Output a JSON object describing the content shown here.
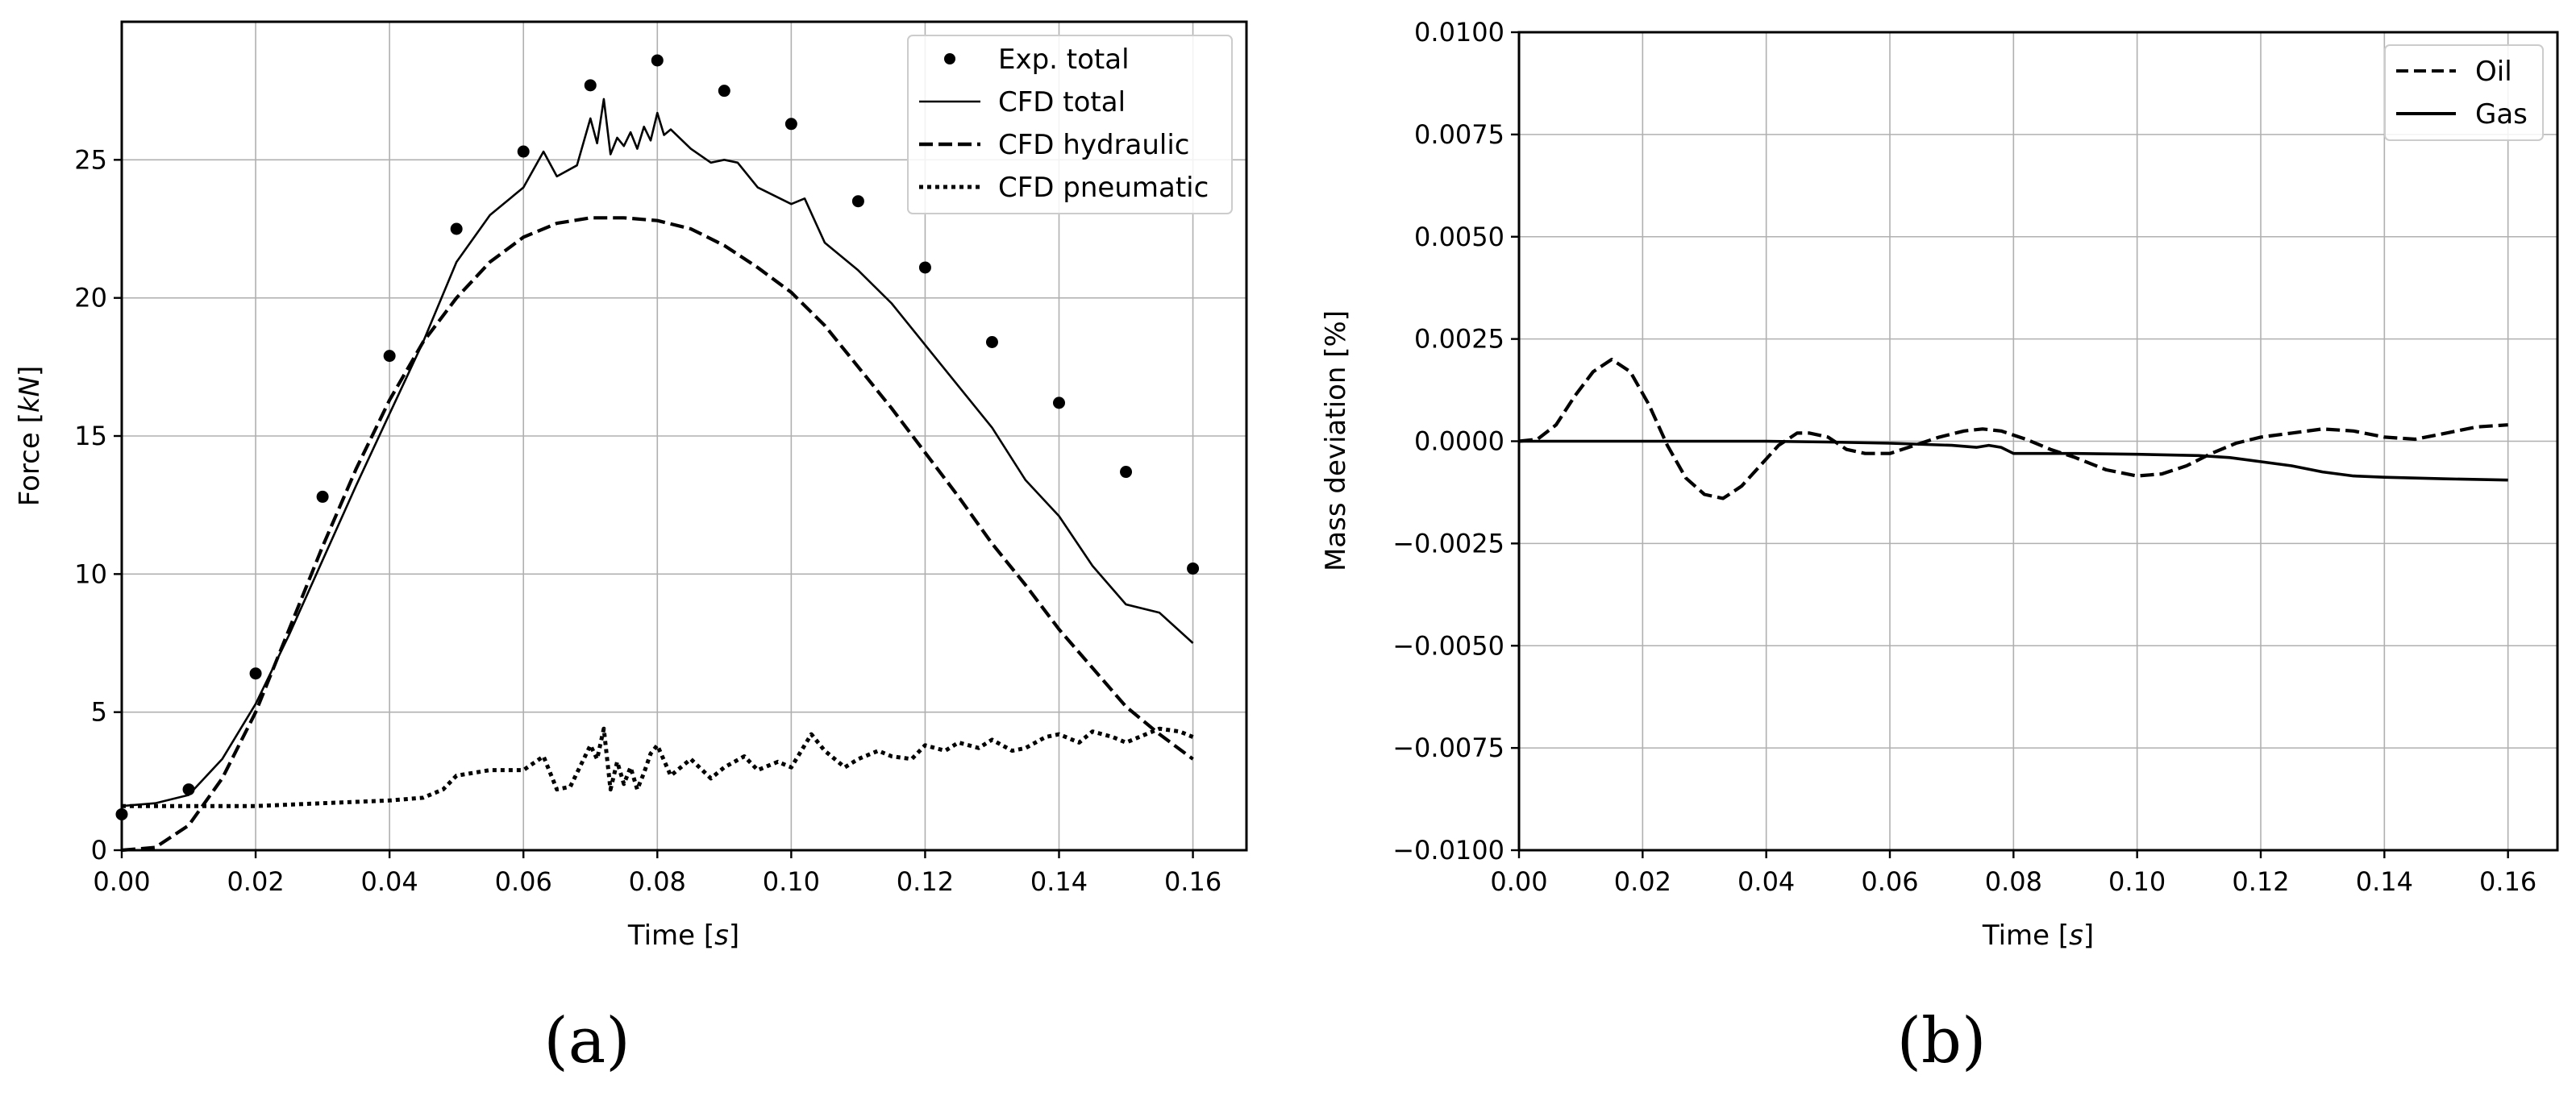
{
  "chart_data": [
    {
      "id": "a",
      "type": "line",
      "panel_label": "(a)",
      "xlabel": "Time [s]",
      "xlabel_parts": [
        "Time [",
        "s",
        "]"
      ],
      "ylabel": "Force [kN]",
      "ylabel_parts": [
        "Force [",
        "kN",
        "]"
      ],
      "xlim": [
        0,
        0.168
      ],
      "ylim": [
        0,
        30
      ],
      "grid": true,
      "legend_placement": "top-right",
      "x_ticks": [
        0,
        0.02,
        0.04,
        0.06,
        0.08,
        0.1,
        0.12,
        0.14,
        0.16
      ],
      "x_tick_labels": [
        "0.00",
        "0.02",
        "0.04",
        "0.06",
        "0.08",
        "0.10",
        "0.12",
        "0.14",
        "0.16"
      ],
      "y_ticks": [
        0,
        5,
        10,
        15,
        20,
        25
      ],
      "y_tick_labels": [
        "0",
        "5",
        "10",
        "15",
        "20",
        "25"
      ],
      "series": [
        {
          "name": "Exp. total",
          "style": "markers",
          "x": [
            0,
            0.01,
            0.02,
            0.03,
            0.04,
            0.05,
            0.06,
            0.07,
            0.08,
            0.09,
            0.1,
            0.11,
            0.12,
            0.13,
            0.14,
            0.15,
            0.16
          ],
          "y": [
            1.3,
            2.2,
            6.4,
            12.8,
            17.9,
            22.5,
            25.3,
            27.7,
            28.6,
            27.5,
            26.3,
            23.5,
            21.1,
            18.4,
            16.2,
            13.7,
            10.2
          ]
        },
        {
          "name": "CFD total",
          "style": "solid-thin",
          "x": [
            0,
            0.005,
            0.01,
            0.015,
            0.02,
            0.025,
            0.03,
            0.035,
            0.04,
            0.045,
            0.05,
            0.055,
            0.06,
            0.063,
            0.065,
            0.068,
            0.07,
            0.071,
            0.072,
            0.073,
            0.074,
            0.075,
            0.076,
            0.077,
            0.078,
            0.079,
            0.08,
            0.081,
            0.082,
            0.085,
            0.088,
            0.09,
            0.092,
            0.095,
            0.1,
            0.102,
            0.105,
            0.11,
            0.115,
            0.12,
            0.125,
            0.13,
            0.135,
            0.14,
            0.145,
            0.15,
            0.155,
            0.16
          ],
          "y": [
            1.6,
            1.7,
            2.0,
            3.3,
            5.3,
            7.8,
            10.5,
            13.2,
            15.8,
            18.4,
            21.3,
            23.0,
            24.0,
            25.3,
            24.4,
            24.8,
            26.5,
            25.6,
            27.2,
            25.2,
            25.8,
            25.5,
            26.0,
            25.4,
            26.2,
            25.7,
            26.7,
            25.9,
            26.1,
            25.4,
            24.9,
            25.0,
            24.9,
            24.0,
            23.4,
            23.6,
            22.0,
            21.0,
            19.8,
            18.3,
            16.8,
            15.3,
            13.4,
            12.1,
            10.3,
            8.9,
            8.6,
            7.5
          ]
        },
        {
          "name": "CFD hydraulic",
          "style": "dashed",
          "x": [
            0,
            0.005,
            0.01,
            0.015,
            0.02,
            0.025,
            0.03,
            0.035,
            0.04,
            0.045,
            0.05,
            0.055,
            0.06,
            0.065,
            0.07,
            0.075,
            0.08,
            0.085,
            0.09,
            0.095,
            0.1,
            0.105,
            0.11,
            0.115,
            0.12,
            0.125,
            0.13,
            0.135,
            0.14,
            0.145,
            0.15,
            0.155,
            0.16
          ],
          "y": [
            0,
            0.1,
            0.9,
            2.6,
            5.0,
            8.0,
            11.0,
            13.8,
            16.3,
            18.4,
            20.0,
            21.3,
            22.2,
            22.7,
            22.9,
            22.9,
            22.8,
            22.5,
            21.9,
            21.1,
            20.2,
            19.0,
            17.5,
            16.0,
            14.4,
            12.8,
            11.1,
            9.6,
            8.0,
            6.6,
            5.2,
            4.2,
            3.3
          ]
        },
        {
          "name": "CFD pneumatic",
          "style": "dotted",
          "x": [
            0,
            0.01,
            0.02,
            0.03,
            0.04,
            0.045,
            0.048,
            0.05,
            0.055,
            0.06,
            0.063,
            0.065,
            0.067,
            0.07,
            0.071,
            0.072,
            0.073,
            0.074,
            0.075,
            0.076,
            0.077,
            0.078,
            0.079,
            0.08,
            0.082,
            0.085,
            0.088,
            0.09,
            0.093,
            0.095,
            0.098,
            0.1,
            0.103,
            0.105,
            0.108,
            0.11,
            0.113,
            0.115,
            0.118,
            0.12,
            0.123,
            0.125,
            0.128,
            0.13,
            0.133,
            0.135,
            0.138,
            0.14,
            0.143,
            0.145,
            0.148,
            0.15,
            0.153,
            0.155,
            0.158,
            0.16
          ],
          "y": [
            1.6,
            1.6,
            1.6,
            1.7,
            1.8,
            1.9,
            2.2,
            2.7,
            2.9,
            2.9,
            3.4,
            2.2,
            2.3,
            3.8,
            3.3,
            4.4,
            2.2,
            3.2,
            2.4,
            3.0,
            2.2,
            2.8,
            3.5,
            3.8,
            2.7,
            3.3,
            2.6,
            3.0,
            3.4,
            2.9,
            3.2,
            3.0,
            4.2,
            3.6,
            3.0,
            3.3,
            3.6,
            3.4,
            3.3,
            3.8,
            3.6,
            3.9,
            3.7,
            4.0,
            3.6,
            3.7,
            4.1,
            4.2,
            3.9,
            4.3,
            4.1,
            3.9,
            4.2,
            4.4,
            4.3,
            4.1
          ]
        }
      ]
    },
    {
      "id": "b",
      "type": "line",
      "panel_label": "(b)",
      "xlabel": "Time [s]",
      "xlabel_parts": [
        "Time [",
        "s",
        "]"
      ],
      "ylabel": "Mass deviation [%]",
      "ylabel_parts": [
        "Mass deviation [%]",
        "",
        ""
      ],
      "xlim": [
        0,
        0.168
      ],
      "ylim": [
        -0.01,
        0.01
      ],
      "grid": true,
      "legend_placement": "top-right",
      "x_ticks": [
        0,
        0.02,
        0.04,
        0.06,
        0.08,
        0.1,
        0.12,
        0.14,
        0.16
      ],
      "x_tick_labels": [
        "0.00",
        "0.02",
        "0.04",
        "0.06",
        "0.08",
        "0.10",
        "0.12",
        "0.14",
        "0.16"
      ],
      "y_ticks": [
        -0.01,
        -0.0075,
        -0.005,
        -0.0025,
        0,
        0.0025,
        0.005,
        0.0075,
        0.01
      ],
      "y_tick_labels": [
        "−0.0100",
        "−0.0075",
        "−0.0050",
        "−0.0025",
        "0.0000",
        "0.0025",
        "0.0050",
        "0.0075",
        "0.0100"
      ],
      "series": [
        {
          "name": "Oil",
          "style": "dashed",
          "x": [
            0,
            0.003,
            0.006,
            0.009,
            0.012,
            0.015,
            0.018,
            0.021,
            0.024,
            0.027,
            0.03,
            0.033,
            0.036,
            0.039,
            0.042,
            0.045,
            0.047,
            0.05,
            0.053,
            0.056,
            0.06,
            0.064,
            0.068,
            0.072,
            0.075,
            0.078,
            0.082,
            0.086,
            0.09,
            0.095,
            0.1,
            0.104,
            0.108,
            0.112,
            0.116,
            0.12,
            0.125,
            0.13,
            0.135,
            0.14,
            0.145,
            0.15,
            0.155,
            0.16
          ],
          "y": [
            0,
            5e-05,
            0.0004,
            0.0011,
            0.0017,
            0.002,
            0.0017,
            0.0009,
            -0.0001,
            -0.0009,
            -0.0013,
            -0.0014,
            -0.0011,
            -0.0006,
            -0.0001,
            0.0002,
            0.0002,
            0.0001,
            -0.0002,
            -0.0003,
            -0.0003,
            -0.0001,
            0.0001,
            0.00025,
            0.0003,
            0.00025,
            5e-05,
            -0.0002,
            -0.0004,
            -0.0007,
            -0.00085,
            -0.0008,
            -0.0006,
            -0.0003,
            -5e-05,
            0.0001,
            0.0002,
            0.0003,
            0.00025,
            0.0001,
            5e-05,
            0.0002,
            0.00035,
            0.0004
          ]
        },
        {
          "name": "Gas",
          "style": "solid",
          "x": [
            0,
            0.02,
            0.04,
            0.05,
            0.06,
            0.07,
            0.074,
            0.076,
            0.078,
            0.08,
            0.09,
            0.1,
            0.11,
            0.115,
            0.12,
            0.125,
            0.13,
            0.135,
            0.14,
            0.15,
            0.16
          ],
          "y": [
            0,
            0,
            0,
            -2e-05,
            -5e-05,
            -0.0001,
            -0.00015,
            -0.0001,
            -0.00015,
            -0.0003,
            -0.0003,
            -0.00032,
            -0.00035,
            -0.0004,
            -0.0005,
            -0.0006,
            -0.00075,
            -0.00085,
            -0.00088,
            -0.00092,
            -0.00095
          ]
        }
      ]
    }
  ]
}
